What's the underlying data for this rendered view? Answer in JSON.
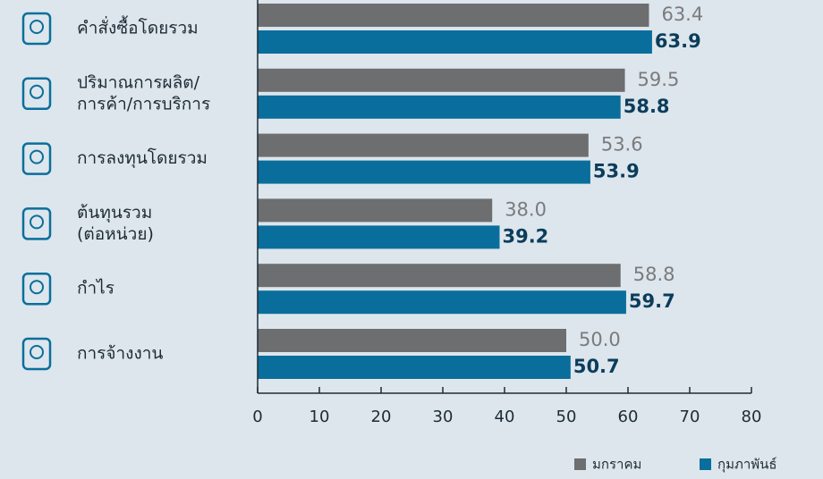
{
  "chart_data": {
    "type": "bar",
    "orientation": "horizontal",
    "categories": [
      [
        "คำสั่งซื้อโดยรวม"
      ],
      [
        "ปริมาณการผลิต/",
        "การค้า/การบริการ"
      ],
      [
        "การลงทุนโดยรวม"
      ],
      [
        "ต้นทุนรวม",
        "(ต่อหน่วย)"
      ],
      [
        "กำไร"
      ],
      [
        "การจ้างงาน"
      ]
    ],
    "series": [
      {
        "name": "มกราคม",
        "color": "#6d6e70",
        "values": [
          63.4,
          59.5,
          53.6,
          38,
          58.8,
          50
        ],
        "value_labels": [
          "63.4",
          "59.5",
          "53.6",
          "38.0",
          "58.8",
          "50.0"
        ]
      },
      {
        "name": "กุมภาพันธ์",
        "color": "#0a6e9c",
        "values": [
          63.9,
          58.8,
          53.9,
          39.2,
          59.7,
          50.7
        ],
        "value_labels": [
          "63.9",
          "58.8",
          "53.9",
          "39.2",
          "59.7",
          "50.7"
        ]
      }
    ],
    "xlim": [
      0,
      80
    ],
    "xticks": [
      0,
      10,
      20,
      30,
      40,
      50,
      60,
      70,
      80
    ],
    "legend": "lower right"
  }
}
